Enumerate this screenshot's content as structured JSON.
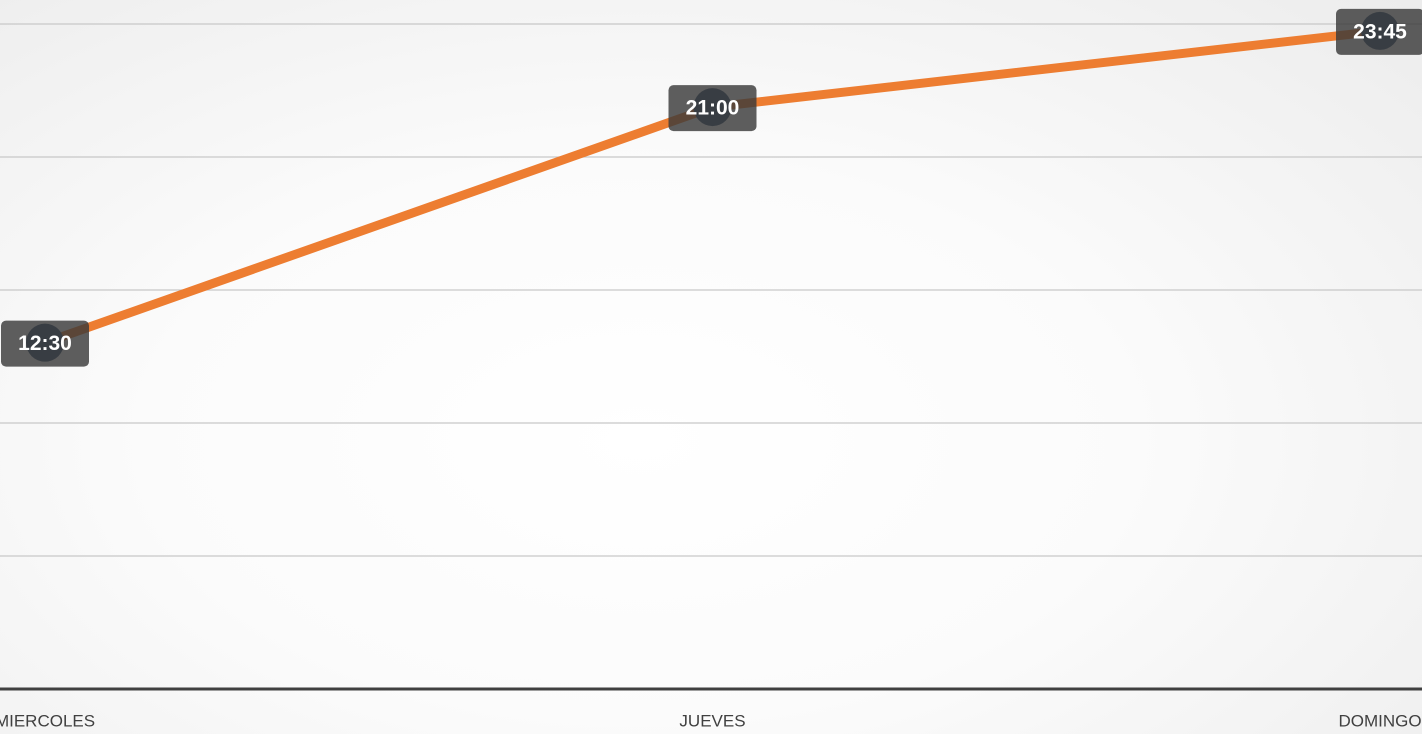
{
  "chart_data": {
    "type": "line",
    "categories": [
      "MIERCOLES",
      "JUEVES",
      "DOMINGO"
    ],
    "values": [
      12.5,
      21,
      23.75
    ],
    "value_labels": [
      "12:30",
      "21:00",
      "23:45"
    ],
    "color": "#ed7d31",
    "ylim": [
      0,
      24
    ],
    "yticks": [
      0,
      4.8,
      9.6,
      14.4,
      19.2,
      24
    ],
    "grid": true
  }
}
